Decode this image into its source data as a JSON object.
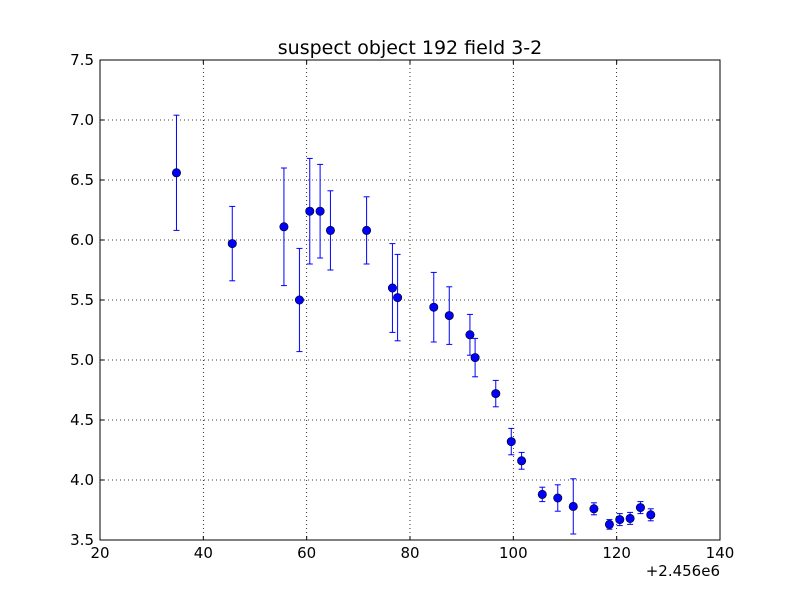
{
  "chart_data": {
    "type": "scatter",
    "title": "suspect object 192 field 3-2",
    "xlabel": "",
    "ylabel": "",
    "x_offset_label": "+2.456e6",
    "xlim": [
      20,
      140
    ],
    "ylim": [
      7.5,
      3.5
    ],
    "y_inverted": true,
    "grid": true,
    "x_ticks": [
      "20",
      "40",
      "60",
      "80",
      "100",
      "120",
      "140"
    ],
    "y_ticks": [
      "3.5",
      "4.0",
      "4.5",
      "5.0",
      "5.5",
      "6.0",
      "6.5",
      "7.0",
      "7.5"
    ],
    "marker_color": "#0000ff",
    "errorbar_color": "#0000ff",
    "series": [
      {
        "points": [
          {
            "x": 34.8,
            "y": 6.56,
            "err": 0.48
          },
          {
            "x": 45.6,
            "y": 5.97,
            "err": 0.31
          },
          {
            "x": 55.6,
            "y": 6.11,
            "err": 0.49
          },
          {
            "x": 58.6,
            "y": 5.5,
            "err": 0.43
          },
          {
            "x": 60.6,
            "y": 6.24,
            "err": 0.44
          },
          {
            "x": 62.6,
            "y": 6.24,
            "err": 0.39
          },
          {
            "x": 64.6,
            "y": 6.08,
            "err": 0.33
          },
          {
            "x": 71.6,
            "y": 6.08,
            "err": 0.28
          },
          {
            "x": 76.6,
            "y": 5.6,
            "err": 0.37
          },
          {
            "x": 77.6,
            "y": 5.52,
            "err": 0.36
          },
          {
            "x": 84.6,
            "y": 5.44,
            "err": 0.29
          },
          {
            "x": 87.6,
            "y": 5.37,
            "err": 0.24
          },
          {
            "x": 91.6,
            "y": 5.21,
            "err": 0.17
          },
          {
            "x": 92.6,
            "y": 5.02,
            "err": 0.16
          },
          {
            "x": 96.6,
            "y": 4.72,
            "err": 0.11
          },
          {
            "x": 99.6,
            "y": 4.32,
            "err": 0.11
          },
          {
            "x": 101.6,
            "y": 4.16,
            "err": 0.07
          },
          {
            "x": 105.6,
            "y": 3.88,
            "err": 0.06
          },
          {
            "x": 108.6,
            "y": 3.85,
            "err": 0.11
          },
          {
            "x": 111.6,
            "y": 3.78,
            "err": 0.23
          },
          {
            "x": 115.6,
            "y": 3.76,
            "err": 0.05
          },
          {
            "x": 118.6,
            "y": 3.63,
            "err": 0.04
          },
          {
            "x": 120.6,
            "y": 3.67,
            "err": 0.05
          },
          {
            "x": 122.6,
            "y": 3.68,
            "err": 0.05
          },
          {
            "x": 124.6,
            "y": 3.77,
            "err": 0.05
          },
          {
            "x": 126.6,
            "y": 3.71,
            "err": 0.05
          }
        ]
      }
    ]
  }
}
